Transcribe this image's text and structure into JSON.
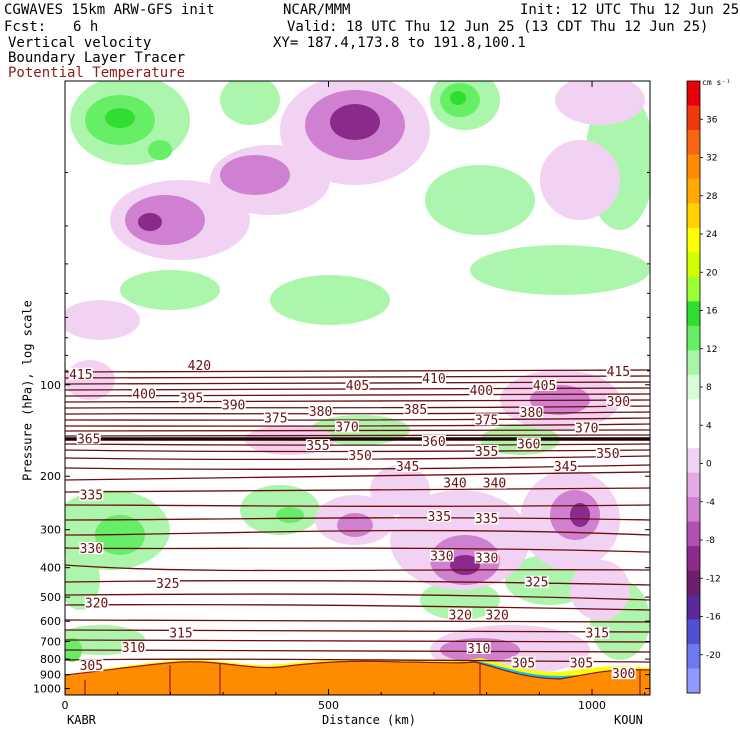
{
  "header": {
    "model": "CGWAVES 15km ARW-GFS init",
    "org": "NCAR/MMM",
    "init": "Init: 12 UTC Thu 12 Jun 25",
    "fcst_label": "Fcst:",
    "fcst_value": "6 h",
    "valid": "Valid: 18 UTC Thu 12 Jun 25 (13 CDT Thu 12 Jun 25)",
    "field1": "Vertical velocity",
    "xy": "XY= 187.4,173.8 to 191.8,100.1",
    "field2": "Boundary Layer Tracer",
    "field3": "Potential Temperature",
    "field3_color": "#8b1a1a"
  },
  "chart_data": {
    "type": "heatmap",
    "title": "Vertical velocity",
    "overlay": "Potential Temperature",
    "ylabel": "Pressure (hPa), log scale",
    "xlabel": "Distance (km)",
    "y_scale": "log",
    "xlim": [
      0,
      1110
    ],
    "x_ticks": [
      0,
      500,
      1000
    ],
    "y_ticks": [
      100,
      200,
      300,
      400,
      500,
      600,
      700,
      800,
      900,
      1000
    ],
    "x_endpoints": [
      "KABR",
      "KOUN"
    ],
    "colorbar": {
      "unit": "cm s⁻¹",
      "labels": [
        36,
        32,
        28,
        24,
        20,
        16,
        12,
        8,
        4,
        0,
        -4,
        -8,
        -12,
        -16,
        -20
      ],
      "colors": [
        "#e8000b",
        "#f0380d",
        "#f86510",
        "#ff8c00",
        "#ffaa00",
        "#ffd200",
        "#ffff00",
        "#d2ff00",
        "#9aff33",
        "#32dd32",
        "#66ee66",
        "#a8f5a8",
        "#d8fcd8",
        "#ffffff",
        "#ffffff",
        "#f2d2f2",
        "#e4aae4",
        "#d080d0",
        "#b050b0",
        "#8a2a8a",
        "#6a206a",
        "#5a2a9a",
        "#5050d0",
        "#6e78f0",
        "#9098ff"
      ]
    },
    "theta_labels": [
      {
        "label": "415",
        "x": 30,
        "p": 92
      },
      {
        "label": "420",
        "x": 255,
        "p": 86
      },
      {
        "label": "405",
        "x": 555,
        "p": 100
      },
      {
        "label": "410",
        "x": 700,
        "p": 95
      },
      {
        "label": "405",
        "x": 910,
        "p": 100
      },
      {
        "label": "415",
        "x": 1050,
        "p": 90
      },
      {
        "label": "400",
        "x": 150,
        "p": 107
      },
      {
        "label": "395",
        "x": 240,
        "p": 110
      },
      {
        "label": "390",
        "x": 320,
        "p": 116
      },
      {
        "label": "400",
        "x": 790,
        "p": 104
      },
      {
        "label": "390",
        "x": 1050,
        "p": 113
      },
      {
        "label": "375",
        "x": 400,
        "p": 128
      },
      {
        "label": "380",
        "x": 485,
        "p": 122
      },
      {
        "label": "385",
        "x": 665,
        "p": 120
      },
      {
        "label": "375",
        "x": 800,
        "p": 130
      },
      {
        "label": "380",
        "x": 885,
        "p": 123
      },
      {
        "label": "370",
        "x": 535,
        "p": 137
      },
      {
        "label": "370",
        "x": 990,
        "p": 138
      },
      {
        "label": "365",
        "x": 45,
        "p": 150
      },
      {
        "label": "360",
        "x": 700,
        "p": 153
      },
      {
        "label": "355",
        "x": 480,
        "p": 158
      },
      {
        "label": "360",
        "x": 880,
        "p": 156
      },
      {
        "label": "350",
        "x": 560,
        "p": 170
      },
      {
        "label": "355",
        "x": 800,
        "p": 165
      },
      {
        "label": "350",
        "x": 1030,
        "p": 168
      },
      {
        "label": "345",
        "x": 650,
        "p": 185
      },
      {
        "label": "345",
        "x": 950,
        "p": 185
      },
      {
        "label": "340",
        "x": 740,
        "p": 210
      },
      {
        "label": "340",
        "x": 815,
        "p": 210
      },
      {
        "label": "335",
        "x": 50,
        "p": 230
      },
      {
        "label": "335",
        "x": 710,
        "p": 270
      },
      {
        "label": "335",
        "x": 800,
        "p": 275
      },
      {
        "label": "330",
        "x": 50,
        "p": 345
      },
      {
        "label": "330",
        "x": 715,
        "p": 365
      },
      {
        "label": "330",
        "x": 800,
        "p": 370
      },
      {
        "label": "325",
        "x": 195,
        "p": 450
      },
      {
        "label": "325",
        "x": 895,
        "p": 445
      },
      {
        "label": "320",
        "x": 60,
        "p": 520
      },
      {
        "label": "320",
        "x": 750,
        "p": 570
      },
      {
        "label": "320",
        "x": 820,
        "p": 570
      },
      {
        "label": "315",
        "x": 220,
        "p": 655
      },
      {
        "label": "315",
        "x": 1010,
        "p": 655
      },
      {
        "label": "310",
        "x": 130,
        "p": 730
      },
      {
        "label": "310",
        "x": 785,
        "p": 735
      },
      {
        "label": "305",
        "x": 50,
        "p": 838
      },
      {
        "label": "305",
        "x": 870,
        "p": 820
      },
      {
        "label": "305",
        "x": 980,
        "p": 820
      },
      {
        "label": "300",
        "x": 1060,
        "p": 890
      }
    ]
  }
}
